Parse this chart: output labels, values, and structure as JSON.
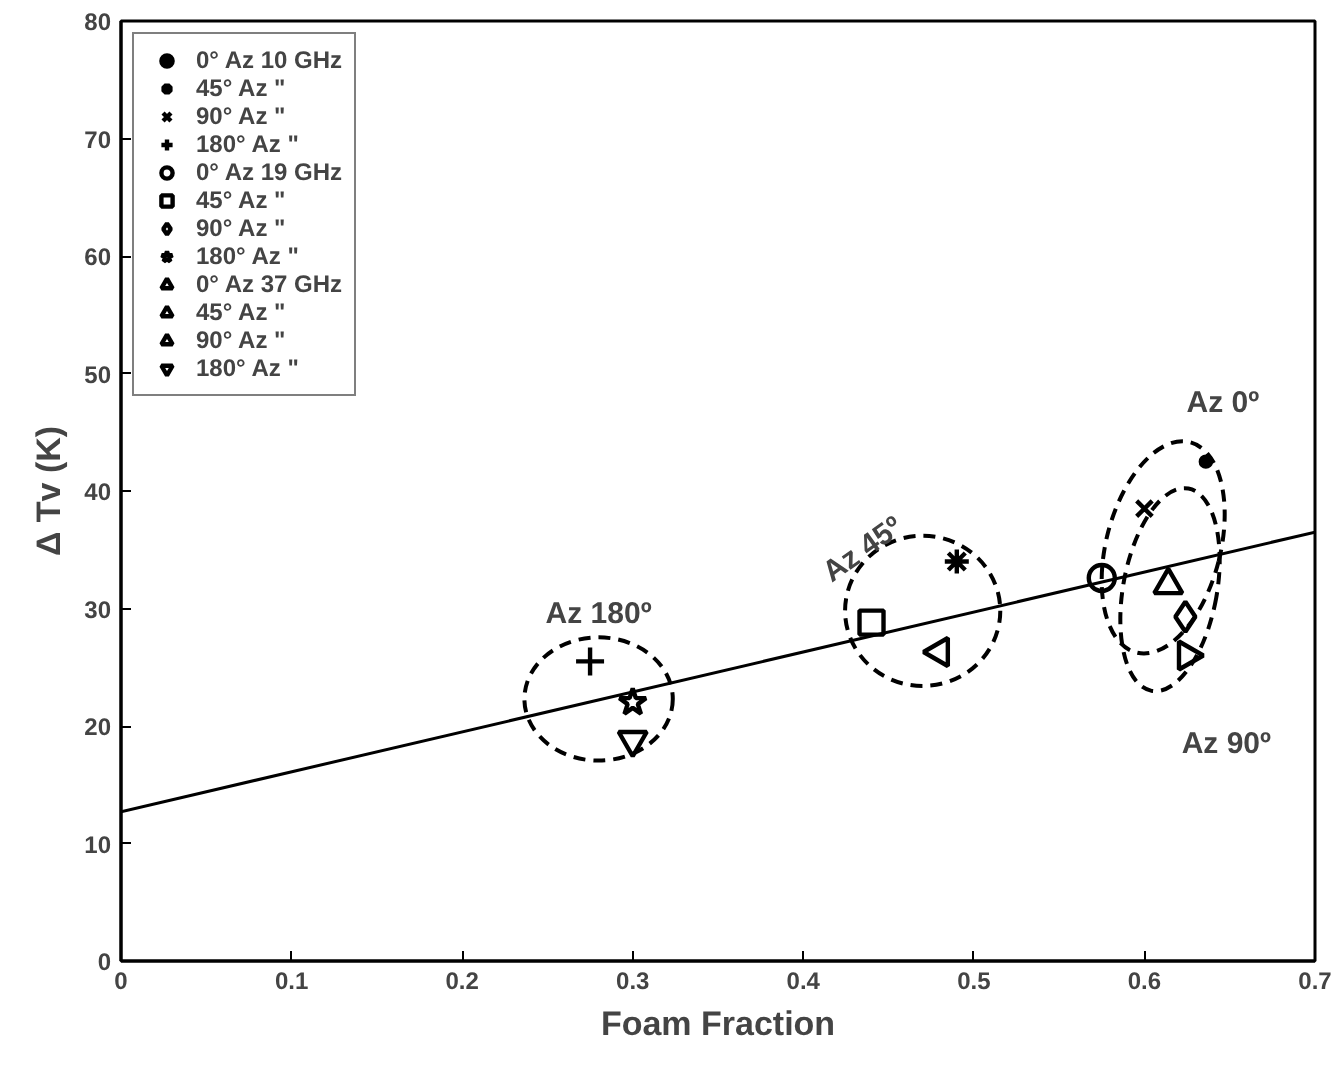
{
  "chart_data": {
    "type": "scatter",
    "xlabel": "Foam Fraction",
    "ylabel": "Δ Tv (K)",
    "xlim": [
      0,
      0.7
    ],
    "ylim": [
      0,
      80
    ],
    "xticks": [
      0,
      0.1,
      0.2,
      0.3,
      0.4,
      0.5,
      0.6,
      0.7
    ],
    "yticks": [
      0,
      10,
      20,
      30,
      40,
      50,
      60,
      70,
      80
    ],
    "grid": false,
    "legend": "top left",
    "series": [
      {
        "name": "0° Az 10 GHz",
        "color": "#000000",
        "x": [
          0.636
        ],
        "values": [
          42.5
        ]
      },
      {
        "name": "45° Az \"",
        "color": "#000000",
        "x": [
          0.49
        ],
        "values": [
          34
        ]
      },
      {
        "name": "90° Az \"",
        "color": "#000000",
        "x": [
          0.6
        ],
        "values": [
          38.5
        ]
      },
      {
        "name": "180° Az \"",
        "color": "#000000",
        "x": [
          0.275
        ],
        "values": [
          25.5
        ]
      },
      {
        "name": "0° Az 19 GHz",
        "color": "#000000",
        "x": [
          0.575
        ],
        "values": [
          32.6
        ]
      },
      {
        "name": "45° Az \"",
        "color": "#000000",
        "x": [
          0.44
        ],
        "values": [
          28.8
        ]
      },
      {
        "name": "90° Az \"",
        "color": "#000000",
        "x": [
          0.624
        ],
        "values": [
          29.3
        ]
      },
      {
        "name": "180° Az \"",
        "color": "#000000",
        "x": [
          0.3
        ],
        "values": [
          22
        ]
      },
      {
        "name": "0° Az 37 GHz",
        "color": "#000000",
        "x": [
          0.614
        ],
        "values": [
          32
        ]
      },
      {
        "name": "45° Az \"",
        "color": "#000000",
        "x": [
          0.48
        ],
        "values": [
          26.3
        ]
      },
      {
        "name": "90° Az \"",
        "color": "#000000",
        "x": [
          0.625
        ],
        "values": [
          26
        ]
      },
      {
        "name": "180° Az \"",
        "color": "#000000",
        "x": [
          0.3
        ],
        "values": [
          18.8
        ]
      },
      {
        "type": "line",
        "color": "#000000",
        "line_style": "solid",
        "x": [
          0,
          0.7
        ],
        "values": [
          12.7,
          36.5
        ]
      }
    ],
    "annotations": [
      "Az 180º",
      "Az 45º",
      "Az 0º",
      "Az 90º"
    ]
  }
}
